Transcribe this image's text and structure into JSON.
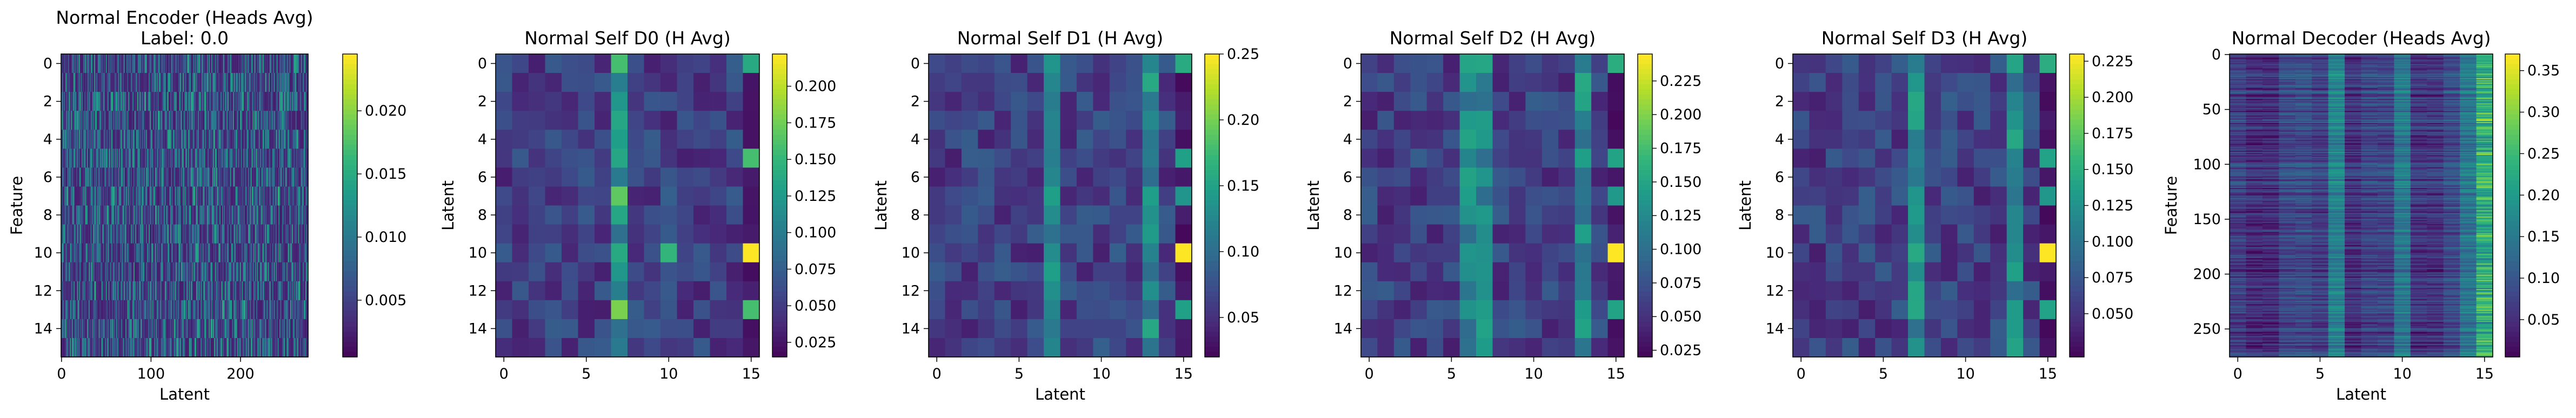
{
  "colormap": "viridis",
  "colormap_stops": [
    "#440154",
    "#482878",
    "#3e4989",
    "#31688e",
    "#26828e",
    "#1f9e89",
    "#35b779",
    "#6ece58",
    "#b5de2b",
    "#fde725"
  ],
  "chart_data": [
    {
      "type": "heatmap",
      "title": "Normal Encoder (Heads Avg)",
      "subtitle": "Label: 0.0",
      "xlabel": "Latent",
      "ylabel": "Feature",
      "shape": [
        16,
        276
      ],
      "xticks": [
        0,
        100,
        200
      ],
      "yticks": [
        0,
        2,
        4,
        6,
        8,
        10,
        12,
        14
      ],
      "colorbar": {
        "min": 0.0005,
        "max": 0.0245,
        "ticks": [
          "0.005",
          "0.010",
          "0.015",
          "0.020"
        ]
      },
      "pattern": "vertical-streaks"
    },
    {
      "type": "heatmap",
      "title": "Normal Self D0 (H Avg)",
      "xlabel": "",
      "ylabel": "Latent",
      "shape": [
        16,
        16
      ],
      "xticks": [
        0,
        5,
        10,
        15
      ],
      "yticks": [
        0,
        2,
        4,
        6,
        8,
        10,
        12,
        14
      ],
      "colorbar": {
        "min": 0.015,
        "max": 0.222,
        "ticks": [
          "0.025",
          "0.050",
          "0.075",
          "0.100",
          "0.125",
          "0.150",
          "0.175",
          "0.200"
        ]
      },
      "strong_cols": [
        7,
        15
      ],
      "hot_cells": [
        [
          10,
          15,
          0.222
        ],
        [
          10,
          7,
          0.14
        ],
        [
          10,
          10,
          0.15
        ],
        [
          13,
          7,
          0.18
        ],
        [
          7,
          7,
          0.17
        ],
        [
          0,
          7,
          0.16
        ],
        [
          5,
          15,
          0.16
        ],
        [
          0,
          15,
          0.14
        ],
        [
          13,
          15,
          0.16
        ]
      ]
    },
    {
      "type": "heatmap",
      "title": "Normal Self D1 (H Avg)",
      "xlabel": "Latent",
      "ylabel": "Latent",
      "shape": [
        16,
        16
      ],
      "xticks": [
        0,
        5,
        10,
        15
      ],
      "yticks": [
        0,
        2,
        4,
        6,
        8,
        10,
        12,
        14
      ],
      "colorbar": {
        "min": 0.02,
        "max": 0.25,
        "ticks": [
          "0.05",
          "0.10",
          "0.15",
          "0.20",
          "0.25"
        ]
      },
      "strong_cols": [
        7,
        13
      ],
      "hot_cells": [
        [
          10,
          15,
          0.25
        ],
        [
          0,
          15,
          0.16
        ],
        [
          5,
          15,
          0.15
        ],
        [
          7,
          15,
          0.14
        ],
        [
          13,
          15,
          0.15
        ]
      ]
    },
    {
      "type": "heatmap",
      "title": "Normal Self D2 (H Avg)",
      "xlabel": "",
      "ylabel": "Latent",
      "shape": [
        16,
        16
      ],
      "xticks": [
        0,
        5,
        10,
        15
      ],
      "yticks": [
        0,
        2,
        4,
        6,
        8,
        10,
        12,
        14
      ],
      "colorbar": {
        "min": 0.02,
        "max": 0.245,
        "ticks": [
          "0.025",
          "0.050",
          "0.075",
          "0.100",
          "0.125",
          "0.150",
          "0.175",
          "0.200",
          "0.225"
        ]
      },
      "strong_cols": [
        6,
        7,
        13
      ],
      "hot_cells": [
        [
          10,
          15,
          0.245
        ],
        [
          0,
          15,
          0.16
        ],
        [
          5,
          15,
          0.15
        ],
        [
          7,
          15,
          0.14
        ],
        [
          13,
          15,
          0.15
        ]
      ]
    },
    {
      "type": "heatmap",
      "title": "Normal Self D3 (H Avg)",
      "xlabel": "",
      "ylabel": "Latent",
      "shape": [
        16,
        16
      ],
      "xticks": [
        0,
        5,
        10,
        15
      ],
      "yticks": [
        0,
        2,
        4,
        6,
        8,
        10,
        12,
        14
      ],
      "colorbar": {
        "min": 0.02,
        "max": 0.23,
        "ticks": [
          "0.050",
          "0.075",
          "0.100",
          "0.125",
          "0.150",
          "0.175",
          "0.200",
          "0.225"
        ]
      },
      "strong_cols": [
        7,
        13
      ],
      "hot_cells": [
        [
          10,
          15,
          0.23
        ],
        [
          0,
          15,
          0.15
        ],
        [
          5,
          15,
          0.14
        ],
        [
          7,
          15,
          0.13
        ],
        [
          13,
          15,
          0.14
        ]
      ]
    },
    {
      "type": "heatmap",
      "title": "Normal Decoder (Heads Avg)",
      "xlabel": "Latent",
      "ylabel": "Feature",
      "shape": [
        276,
        16
      ],
      "xticks": [
        0,
        5,
        10,
        15
      ],
      "yticks": [
        0,
        50,
        100,
        150,
        200,
        250
      ],
      "colorbar": {
        "min": 0.005,
        "max": 0.37,
        "ticks": [
          "0.05",
          "0.10",
          "0.15",
          "0.20",
          "0.25",
          "0.30",
          "0.35"
        ]
      },
      "strong_cols": [
        6,
        10,
        14,
        15
      ],
      "pattern": "horizontal-streaks"
    }
  ]
}
